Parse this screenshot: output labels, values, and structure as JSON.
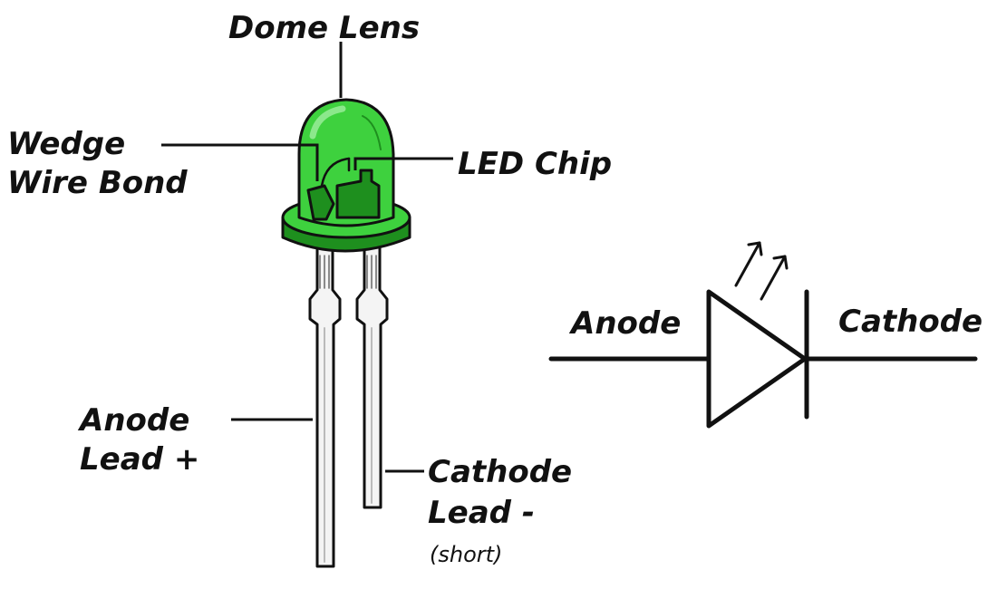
{
  "colors": {
    "lens": "#3ed13e",
    "lens_light": "#8be88b",
    "lens_dark": "#1e8f1e",
    "ink": "#111111",
    "lead": "#f4f4f4"
  },
  "labels": {
    "dome_lens": "Dome Lens",
    "wedge_line1": "Wedge",
    "wedge_line2": "Wire Bond",
    "led_chip": "LED Chip",
    "anode_lead_line1": "Anode",
    "anode_lead_line2": "Lead +",
    "cathode_lead_line1": "Cathode",
    "cathode_lead_line2": "Lead -",
    "cathode_lead_note": "(short)",
    "symbol_anode": "Anode",
    "symbol_cathode": "Cathode"
  }
}
